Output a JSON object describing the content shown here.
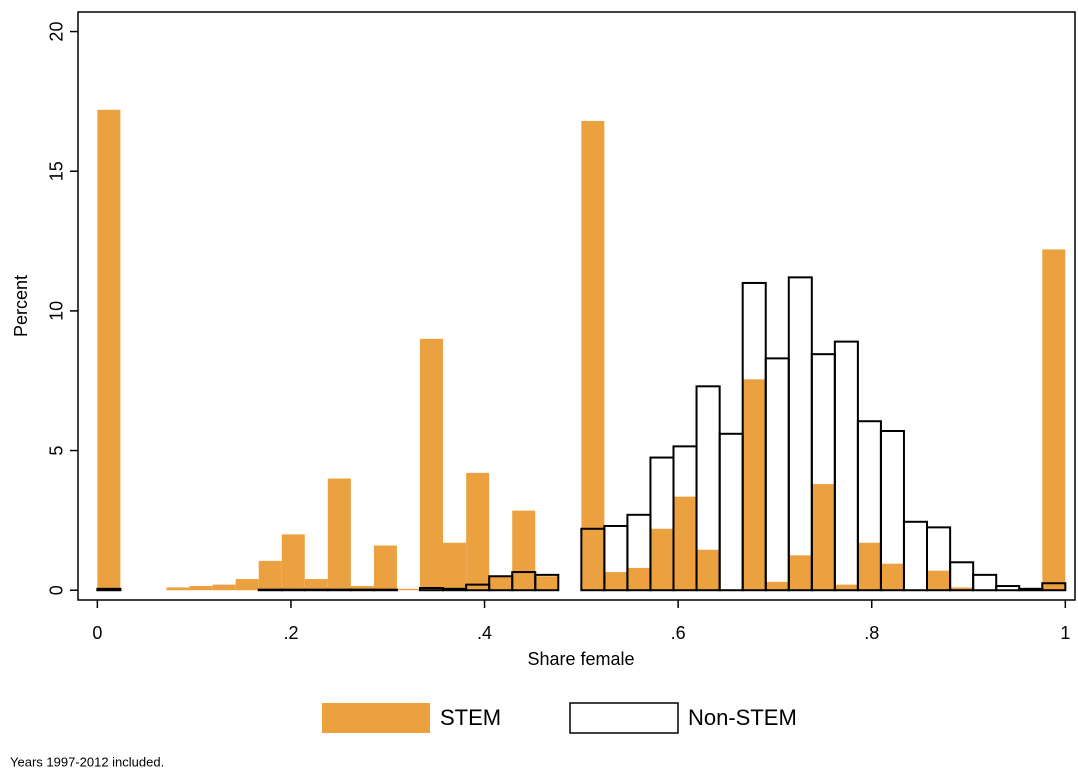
{
  "chart_data": {
    "type": "histogram",
    "xlabel": "Share female",
    "ylabel": "Percent",
    "note": "Years 1997-2012 included.",
    "bins": [
      0,
      0.0238,
      0.0476,
      0.0714,
      0.0952,
      0.119,
      0.1429,
      0.1667,
      0.1905,
      0.2143,
      0.2381,
      0.2619,
      0.2857,
      0.3095,
      0.3333,
      0.3571,
      0.381,
      0.4048,
      0.4286,
      0.4524,
      0.4762,
      0.5,
      0.5238,
      0.5476,
      0.5714,
      0.5952,
      0.619,
      0.6429,
      0.6667,
      0.6905,
      0.7143,
      0.7381,
      0.7619,
      0.7857,
      0.8095,
      0.8333,
      0.8571,
      0.881,
      0.9048,
      0.9286,
      0.9524,
      0.9762,
      1
    ],
    "series": [
      {
        "name": "STEM",
        "color": "#eca140",
        "outline": false,
        "values": [
          17.2,
          0,
          0,
          0.1,
          0.15,
          0.2,
          0.4,
          1.05,
          2.0,
          0.4,
          4.0,
          0.15,
          1.6,
          0.05,
          9.0,
          1.7,
          4.2,
          0.5,
          2.85,
          0.5,
          0,
          16.8,
          0.65,
          0.8,
          2.2,
          3.35,
          1.45,
          0,
          7.55,
          0.3,
          1.25,
          3.8,
          0.2,
          1.7,
          0.95,
          0,
          0.7,
          0.1,
          0,
          0,
          0,
          12.2
        ]
      },
      {
        "name": "Non-STEM",
        "color": "#000000",
        "outline": true,
        "values": [
          0.05,
          0,
          0,
          0,
          0,
          0,
          0,
          0.02,
          0.02,
          0.02,
          0.02,
          0.02,
          0.02,
          0,
          0.08,
          0.05,
          0.2,
          0.5,
          0.65,
          0.55,
          0,
          2.2,
          2.3,
          2.7,
          4.75,
          5.15,
          7.3,
          5.6,
          11.0,
          8.3,
          11.2,
          8.45,
          8.9,
          6.05,
          5.7,
          2.45,
          2.25,
          1.0,
          0.55,
          0.15,
          0.05,
          0.25
        ]
      }
    ],
    "xlim": [
      -0.02,
      1.01
    ],
    "ylim": [
      -0.35,
      20.7
    ],
    "xticks": [
      0,
      {
        "value": 0.2,
        "label": ".2"
      },
      {
        "value": 0.4,
        "label": ".4"
      },
      {
        "value": 0.6,
        "label": ".6"
      },
      {
        "value": 0.8,
        "label": ".8"
      },
      1
    ],
    "yticks": [
      0,
      5,
      10,
      15,
      20
    ],
    "legend": "bottom"
  }
}
